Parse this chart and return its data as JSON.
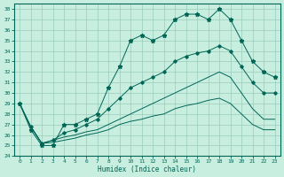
{
  "title": "",
  "xlabel": "Humidex (Indice chaleur)",
  "bg_color": "#c8eee0",
  "grid_color": "#99ccbb",
  "line_color": "#006655",
  "xlim": [
    -0.5,
    23.5
  ],
  "ylim": [
    24,
    38.5
  ],
  "yticks": [
    24,
    25,
    26,
    27,
    28,
    29,
    30,
    31,
    32,
    33,
    34,
    35,
    36,
    37,
    38
  ],
  "xticks": [
    0,
    1,
    2,
    3,
    4,
    5,
    6,
    7,
    8,
    9,
    10,
    11,
    12,
    13,
    14,
    15,
    16,
    17,
    18,
    19,
    20,
    21,
    22,
    23
  ],
  "main_x": [
    0,
    1,
    2,
    3,
    4,
    5,
    6,
    7,
    8,
    9,
    10,
    11,
    12,
    13,
    14,
    15,
    16,
    17,
    18,
    19,
    20,
    21,
    22,
    23
  ],
  "main_y": [
    29.0,
    26.5,
    25.0,
    25.0,
    27.0,
    27.0,
    27.5,
    28.0,
    30.5,
    32.5,
    35.0,
    35.5,
    35.0,
    35.5,
    37.0,
    37.5,
    37.5,
    37.0,
    38.0,
    37.0,
    35.0,
    33.0,
    32.0,
    31.5
  ],
  "smooth1_x": [
    0,
    1,
    2,
    3,
    4,
    5,
    6,
    7,
    8,
    9,
    10,
    11,
    12,
    13,
    14,
    15,
    16,
    17,
    18,
    19,
    20,
    21,
    22,
    23
  ],
  "smooth1_y": [
    29.0,
    26.8,
    25.2,
    25.5,
    26.2,
    26.5,
    27.0,
    27.5,
    28.5,
    29.5,
    30.5,
    31.0,
    31.5,
    32.0,
    33.0,
    33.5,
    33.8,
    34.0,
    34.5,
    34.0,
    32.5,
    31.0,
    30.0,
    30.0
  ],
  "smooth2_x": [
    0,
    1,
    2,
    3,
    4,
    5,
    6,
    7,
    8,
    9,
    10,
    11,
    12,
    13,
    14,
    15,
    16,
    17,
    18,
    19,
    20,
    21,
    22,
    23
  ],
  "smooth2_y": [
    29.0,
    26.8,
    25.2,
    25.5,
    25.8,
    26.0,
    26.3,
    26.5,
    27.0,
    27.5,
    28.0,
    28.5,
    29.0,
    29.5,
    30.0,
    30.5,
    31.0,
    31.5,
    32.0,
    31.5,
    30.0,
    28.5,
    27.5,
    27.5
  ],
  "smooth3_x": [
    0,
    1,
    2,
    3,
    4,
    5,
    6,
    7,
    8,
    9,
    10,
    11,
    12,
    13,
    14,
    15,
    16,
    17,
    18,
    19,
    20,
    21,
    22,
    23
  ],
  "smooth3_y": [
    29.0,
    26.8,
    25.2,
    25.3,
    25.5,
    25.7,
    26.0,
    26.2,
    26.5,
    27.0,
    27.3,
    27.5,
    27.8,
    28.0,
    28.5,
    28.8,
    29.0,
    29.3,
    29.5,
    29.0,
    28.0,
    27.0,
    26.5,
    26.5
  ]
}
